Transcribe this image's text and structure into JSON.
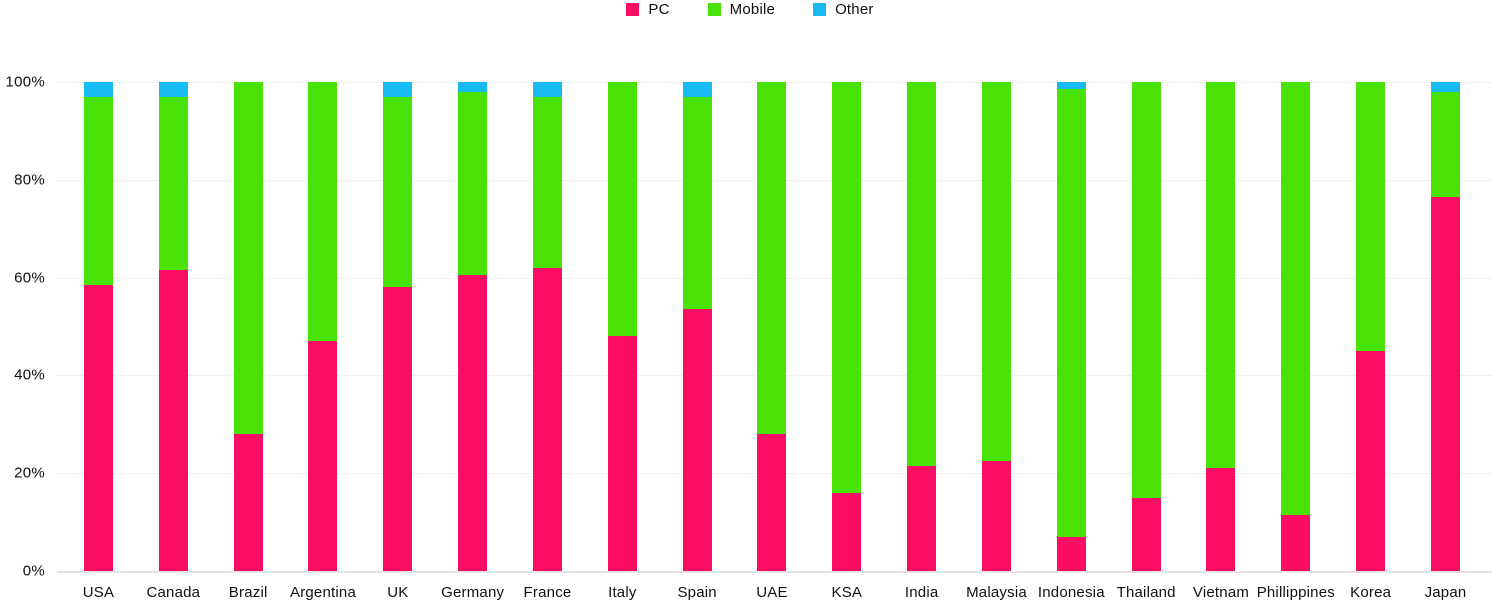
{
  "chart_data": {
    "type": "bar",
    "variant": "stacked-percent-column",
    "title": "",
    "xlabel": "",
    "ylabel": "",
    "ylim": [
      0,
      100
    ],
    "y_ticks": [
      "0%",
      "20%",
      "40%",
      "60%",
      "80%",
      "100%"
    ],
    "grid": "horizontal",
    "legend_position": "top-center",
    "categories": [
      "USA",
      "Canada",
      "Brazil",
      "Argentina",
      "UK",
      "Germany",
      "France",
      "Italy",
      "Spain",
      "UAE",
      "KSA",
      "India",
      "Malaysia",
      "Indonesia",
      "Thailand",
      "Vietnam",
      "Phillippines",
      "Korea",
      "Japan"
    ],
    "series": [
      {
        "name": "PC",
        "color": "#fb0d63",
        "values": [
          58.5,
          61.5,
          28,
          47,
          58,
          60.5,
          62,
          48,
          53.5,
          28,
          16,
          21.5,
          22.5,
          7,
          15,
          21,
          11.5,
          45,
          76.5
        ]
      },
      {
        "name": "Mobile",
        "color": "#48e205",
        "values": [
          38.5,
          35.5,
          72,
          53,
          39,
          37.5,
          35,
          52,
          43.5,
          72,
          84,
          78.5,
          77.5,
          91.5,
          85,
          79,
          88.5,
          55,
          21.5
        ]
      },
      {
        "name": "Other",
        "color": "#18baf2",
        "values": [
          3,
          3,
          0,
          0,
          3,
          2,
          3,
          0,
          3,
          0,
          0,
          0,
          0,
          1.5,
          0,
          0,
          0,
          0,
          2
        ]
      }
    ]
  },
  "colors": {
    "background": "#ffffff",
    "gridline": "#f0f0f0",
    "axis_line": "#e4e4e4",
    "text": "#111111"
  }
}
